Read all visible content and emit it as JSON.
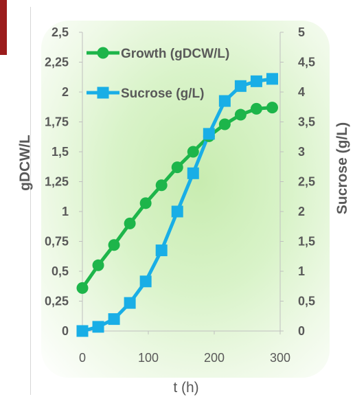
{
  "chart_data": {
    "type": "line",
    "x_label": "t (h)",
    "y_left_label": "gDCW/L",
    "y_right_label": "Sucrose (g/L)",
    "x_ticks": [
      "0",
      "100",
      "200",
      "300"
    ],
    "x_range": [
      0,
      300
    ],
    "y_left_ticks": [
      "0",
      "0,25",
      "0,5",
      "0,75",
      "1",
      "1,25",
      "1,5",
      "1,75",
      "2",
      "2,25",
      "2,5"
    ],
    "y_left_range": [
      0,
      2.5
    ],
    "y_right_ticks": [
      "0",
      "0,5",
      "1",
      "1,5",
      "2",
      "2,5",
      "3",
      "3,5",
      "4",
      "4,5",
      "5"
    ],
    "y_right_range": [
      0,
      5
    ],
    "grid": false,
    "legend_placement": "top-left",
    "series": [
      {
        "name": "Growth (gDCW/L)",
        "axis": "left",
        "color": "#1db54a",
        "marker": "circle",
        "x": [
          0,
          24,
          48,
          72,
          96,
          120,
          144,
          168,
          192,
          216,
          240,
          264,
          288
        ],
        "y": [
          0.36,
          0.55,
          0.72,
          0.9,
          1.07,
          1.22,
          1.37,
          1.5,
          1.63,
          1.73,
          1.81,
          1.86,
          1.87
        ]
      },
      {
        "name": "Sucrose (g/L)",
        "axis": "right",
        "color": "#19aee6",
        "marker": "square",
        "x": [
          0,
          24,
          48,
          72,
          96,
          120,
          144,
          168,
          192,
          216,
          240,
          264,
          288
        ],
        "y": [
          0.0,
          0.07,
          0.2,
          0.47,
          0.83,
          1.35,
          2.0,
          2.64,
          3.3,
          3.85,
          4.1,
          4.18,
          4.22
        ]
      }
    ]
  }
}
